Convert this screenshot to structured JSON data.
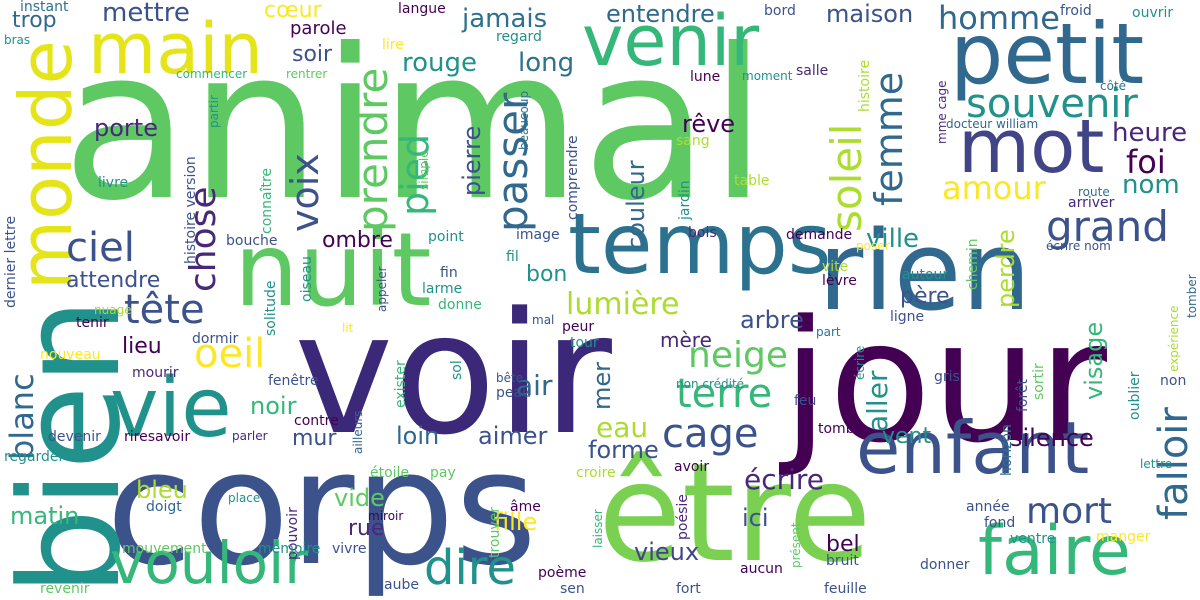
{
  "words": [
    {
      "text": "animal",
      "color": "#5ec962"
    },
    {
      "text": "voir",
      "color": "#3b2879"
    },
    {
      "text": "jour",
      "color": "#440154"
    },
    {
      "text": "corps",
      "color": "#3b528b"
    },
    {
      "text": "bien",
      "color": "#21918c"
    },
    {
      "text": "être",
      "color": "#7ad151"
    },
    {
      "text": "rien",
      "color": "#31688e"
    },
    {
      "text": "nuit",
      "color": "#5ec962"
    },
    {
      "text": "temps",
      "color": "#2c728e"
    },
    {
      "text": "petit",
      "color": "#31688e"
    },
    {
      "text": "venir",
      "color": "#35b779"
    },
    {
      "text": "main",
      "color": "#e5e419"
    },
    {
      "text": "monde",
      "color": "#e5e419"
    },
    {
      "text": "mot",
      "color": "#414487"
    },
    {
      "text": "vie",
      "color": "#21918c"
    },
    {
      "text": "enfant",
      "color": "#3b528b"
    },
    {
      "text": "faire",
      "color": "#35b779"
    },
    {
      "text": "vouloir",
      "color": "#35b779"
    },
    {
      "text": "dire",
      "color": "#21918c"
    },
    {
      "text": "souvenir",
      "color": "#21918c"
    },
    {
      "text": "soleil",
      "color": "#addc30"
    },
    {
      "text": "femme",
      "color": "#31688e"
    },
    {
      "text": "prendre",
      "color": "#5ec962"
    },
    {
      "text": "passer",
      "color": "#31688e"
    },
    {
      "text": "pied",
      "color": "#35b779"
    },
    {
      "text": "voix",
      "color": "#3b528b"
    },
    {
      "text": "chose",
      "color": "#482878"
    },
    {
      "text": "tête",
      "color": "#3b528b"
    },
    {
      "text": "ciel",
      "color": "#3b528b"
    },
    {
      "text": "grand",
      "color": "#3b528b"
    },
    {
      "text": "amour",
      "color": "#fde725"
    },
    {
      "text": "falloir",
      "color": "#31688e"
    },
    {
      "text": "cage",
      "color": "#3b528b"
    },
    {
      "text": "terre",
      "color": "#35b779"
    },
    {
      "text": "neige",
      "color": "#5ec962"
    },
    {
      "text": "blanc",
      "color": "#31688e"
    },
    {
      "text": "oeil",
      "color": "#fde725"
    },
    {
      "text": "mort",
      "color": "#3b528b"
    },
    {
      "text": "lumière",
      "color": "#addc30"
    },
    {
      "text": "foi",
      "color": "#440154"
    },
    {
      "text": "heure",
      "color": "#482878"
    },
    {
      "text": "homme",
      "color": "#31688e"
    },
    {
      "text": "rouge",
      "color": "#21918c"
    },
    {
      "text": "long",
      "color": "#2c728e"
    },
    {
      "text": "jamais",
      "color": "#2c728e"
    },
    {
      "text": "entendre",
      "color": "#31688e"
    },
    {
      "text": "maison",
      "color": "#3b528b"
    },
    {
      "text": "mettre",
      "color": "#3b528b"
    },
    {
      "text": "porte",
      "color": "#482878"
    },
    {
      "text": "rêve",
      "color": "#440154"
    },
    {
      "text": "couleur",
      "color": "#31688e"
    },
    {
      "text": "pierre",
      "color": "#3b528b"
    },
    {
      "text": "ville",
      "color": "#21918c"
    },
    {
      "text": "nom",
      "color": "#21918c"
    },
    {
      "text": "perdre",
      "color": "#addc30"
    },
    {
      "text": "visage",
      "color": "#35b779"
    },
    {
      "text": "ombre",
      "color": "#440154"
    },
    {
      "text": "attendre",
      "color": "#3b528b"
    },
    {
      "text": "bon",
      "color": "#21918c"
    },
    {
      "text": "arbre",
      "color": "#3b528b"
    },
    {
      "text": "père",
      "color": "#3b528b"
    },
    {
      "text": "mère",
      "color": "#482878"
    },
    {
      "text": "aller",
      "color": "#21918c"
    },
    {
      "text": "silence",
      "color": "#440154"
    },
    {
      "text": "vent",
      "color": "#21918c"
    },
    {
      "text": "loin",
      "color": "#31688e"
    },
    {
      "text": "aimer",
      "color": "#3b528b"
    },
    {
      "text": "eau",
      "color": "#addc30"
    },
    {
      "text": "forme",
      "color": "#3b528b"
    },
    {
      "text": "écrire",
      "color": "#482878"
    },
    {
      "text": "mur",
      "color": "#3b528b"
    },
    {
      "text": "noir",
      "color": "#35b779"
    },
    {
      "text": "air",
      "color": "#31688e"
    },
    {
      "text": "mer",
      "color": "#31688e"
    },
    {
      "text": "lieu",
      "color": "#440154"
    },
    {
      "text": "ici",
      "color": "#3b528b"
    },
    {
      "text": "bel",
      "color": "#440154"
    },
    {
      "text": "fille",
      "color": "#fde725"
    },
    {
      "text": "vieux",
      "color": "#414487"
    },
    {
      "text": "matin",
      "color": "#35b779"
    },
    {
      "text": "bleu",
      "color": "#addc30"
    },
    {
      "text": "vide",
      "color": "#5ec962"
    },
    {
      "text": "rue",
      "color": "#482878"
    },
    {
      "text": "trop",
      "color": "#31688e"
    },
    {
      "text": "cœur",
      "color": "#fde725"
    },
    {
      "text": "soir",
      "color": "#3b528b"
    },
    {
      "text": "parole",
      "color": "#440154"
    },
    {
      "text": "instant",
      "color": "#2c728e"
    },
    {
      "text": "langue",
      "color": "#440154"
    },
    {
      "text": "bord",
      "color": "#3b528b"
    },
    {
      "text": "froid",
      "color": "#3b528b"
    },
    {
      "text": "ouvrir",
      "color": "#21918c"
    },
    {
      "text": "bras",
      "color": "#21918c"
    },
    {
      "text": "lire",
      "color": "#fde725"
    },
    {
      "text": "regard",
      "color": "#21918c"
    },
    {
      "text": "commencer",
      "color": "#35b779"
    },
    {
      "text": "rentrer",
      "color": "#5ec962"
    },
    {
      "text": "lune",
      "color": "#440154"
    },
    {
      "text": "moment",
      "color": "#21918c"
    },
    {
      "text": "salle",
      "color": "#482878"
    },
    {
      "text": "histoire",
      "color": "#addc30"
    },
    {
      "text": "côté",
      "color": "#2c728e"
    },
    {
      "text": "docteur william",
      "color": "#31688e"
    },
    {
      "text": "mme cage",
      "color": "#482878"
    },
    {
      "text": "histoire version",
      "color": "#3b528b"
    },
    {
      "text": "partir",
      "color": "#21918c"
    },
    {
      "text": "connaître",
      "color": "#35b779"
    },
    {
      "text": "simple",
      "color": "#5ec962"
    },
    {
      "text": "beaucoup",
      "color": "#2c728e"
    },
    {
      "text": "comprendre",
      "color": "#3b528b"
    },
    {
      "text": "jardin",
      "color": "#21918c"
    },
    {
      "text": "sang",
      "color": "#addc30"
    },
    {
      "text": "table",
      "color": "#addc30"
    },
    {
      "text": "route",
      "color": "#2c728e"
    },
    {
      "text": "arriver",
      "color": "#482878"
    },
    {
      "text": "écrire nom",
      "color": "#3b528b"
    },
    {
      "text": "livre",
      "color": "#21918c"
    },
    {
      "text": "dernier lettre",
      "color": "#3b528b"
    },
    {
      "text": "point",
      "color": "#21918c"
    },
    {
      "text": "image",
      "color": "#3b528b"
    },
    {
      "text": "bois",
      "color": "#482878"
    },
    {
      "text": "demande",
      "color": "#440154"
    },
    {
      "text": "poser",
      "color": "#fde725"
    },
    {
      "text": "tomber",
      "color": "#31688e"
    },
    {
      "text": "bouche",
      "color": "#3b528b"
    },
    {
      "text": "fin",
      "color": "#3b528b"
    },
    {
      "text": "larme",
      "color": "#21918c"
    },
    {
      "text": "donne",
      "color": "#35b779"
    },
    {
      "text": "fil",
      "color": "#21918c"
    },
    {
      "text": "appeler",
      "color": "#3b528b"
    },
    {
      "text": "oiseau",
      "color": "#21918c"
    },
    {
      "text": "solitude",
      "color": "#21918c"
    },
    {
      "text": "vite",
      "color": "#addc30"
    },
    {
      "text": "autour",
      "color": "#21918c"
    },
    {
      "text": "lèvre",
      "color": "#440154"
    },
    {
      "text": "chemin",
      "color": "#5ec962"
    },
    {
      "text": "expérience",
      "color": "#addc30"
    },
    {
      "text": "nuage",
      "color": "#addc30"
    },
    {
      "text": "tenir",
      "color": "#440154"
    },
    {
      "text": "lit",
      "color": "#fde725"
    },
    {
      "text": "mal",
      "color": "#3b528b"
    },
    {
      "text": "peur",
      "color": "#440154"
    },
    {
      "text": "tour",
      "color": "#21918c"
    },
    {
      "text": "part",
      "color": "#2c728e"
    },
    {
      "text": "ligne",
      "color": "#3b528b"
    },
    {
      "text": "écrire",
      "color": "#21918c"
    },
    {
      "text": "dormir",
      "color": "#3b528b"
    },
    {
      "text": "nouveau",
      "color": "#fde725"
    },
    {
      "text": "mourir",
      "color": "#482878"
    },
    {
      "text": "fenêtre",
      "color": "#3b528b"
    },
    {
      "text": "exister",
      "color": "#35b779"
    },
    {
      "text": "sol",
      "color": "#21918c"
    },
    {
      "text": "bête",
      "color": "#3b528b"
    },
    {
      "text": "peau",
      "color": "#3b528b"
    },
    {
      "text": "non crédité",
      "color": "#21918c"
    },
    {
      "text": "feu",
      "color": "#3b528b"
    },
    {
      "text": "gris",
      "color": "#3b528b"
    },
    {
      "text": "forêt",
      "color": "#3b528b"
    },
    {
      "text": "sortir",
      "color": "#5ec962"
    },
    {
      "text": "horizon",
      "color": "#2c728e"
    },
    {
      "text": "oublier",
      "color": "#21918c"
    },
    {
      "text": "non",
      "color": "#3b528b"
    },
    {
      "text": "devenir",
      "color": "#3b528b"
    },
    {
      "text": "riresavoir",
      "color": "#440154"
    },
    {
      "text": "parler",
      "color": "#482878"
    },
    {
      "text": "contre",
      "color": "#440154"
    },
    {
      "text": "ailleurs",
      "color": "#31688e"
    },
    {
      "text": "tombe",
      "color": "#440154"
    },
    {
      "text": "regarder",
      "color": "#21918c"
    },
    {
      "text": "étoile",
      "color": "#5ec962"
    },
    {
      "text": "pay",
      "color": "#5ec962"
    },
    {
      "text": "croire",
      "color": "#addc30"
    },
    {
      "text": "avoir",
      "color": "#440154"
    },
    {
      "text": "lettre",
      "color": "#21918c"
    },
    {
      "text": "doigt",
      "color": "#31688e"
    },
    {
      "text": "place",
      "color": "#21918c"
    },
    {
      "text": "pouvoir",
      "color": "#482878"
    },
    {
      "text": "miroir",
      "color": "#440154"
    },
    {
      "text": "trouver",
      "color": "#5ec962"
    },
    {
      "text": "âme",
      "color": "#440154"
    },
    {
      "text": "laisser",
      "color": "#35b779"
    },
    {
      "text": "poésie",
      "color": "#482878"
    },
    {
      "text": "présent",
      "color": "#5ec962"
    },
    {
      "text": "année",
      "color": "#3b528b"
    },
    {
      "text": "fond",
      "color": "#3b528b"
    },
    {
      "text": "ventre",
      "color": "#21918c"
    },
    {
      "text": "manger",
      "color": "#fde725"
    },
    {
      "text": "mouvement",
      "color": "#5ec962"
    },
    {
      "text": "mémoire",
      "color": "#21918c"
    },
    {
      "text": "vivre",
      "color": "#3b528b"
    },
    {
      "text": "aucun",
      "color": "#440154"
    },
    {
      "text": "bruit",
      "color": "#3b528b"
    },
    {
      "text": "donner",
      "color": "#3b528b"
    },
    {
      "text": "aube",
      "color": "#3b528b"
    },
    {
      "text": "poème",
      "color": "#440154"
    },
    {
      "text": "revenir",
      "color": "#5ec962"
    },
    {
      "text": "sen",
      "color": "#3b528b"
    },
    {
      "text": "fort",
      "color": "#3b528b"
    },
    {
      "text": "feuille",
      "color": "#3b528b"
    }
  ]
}
